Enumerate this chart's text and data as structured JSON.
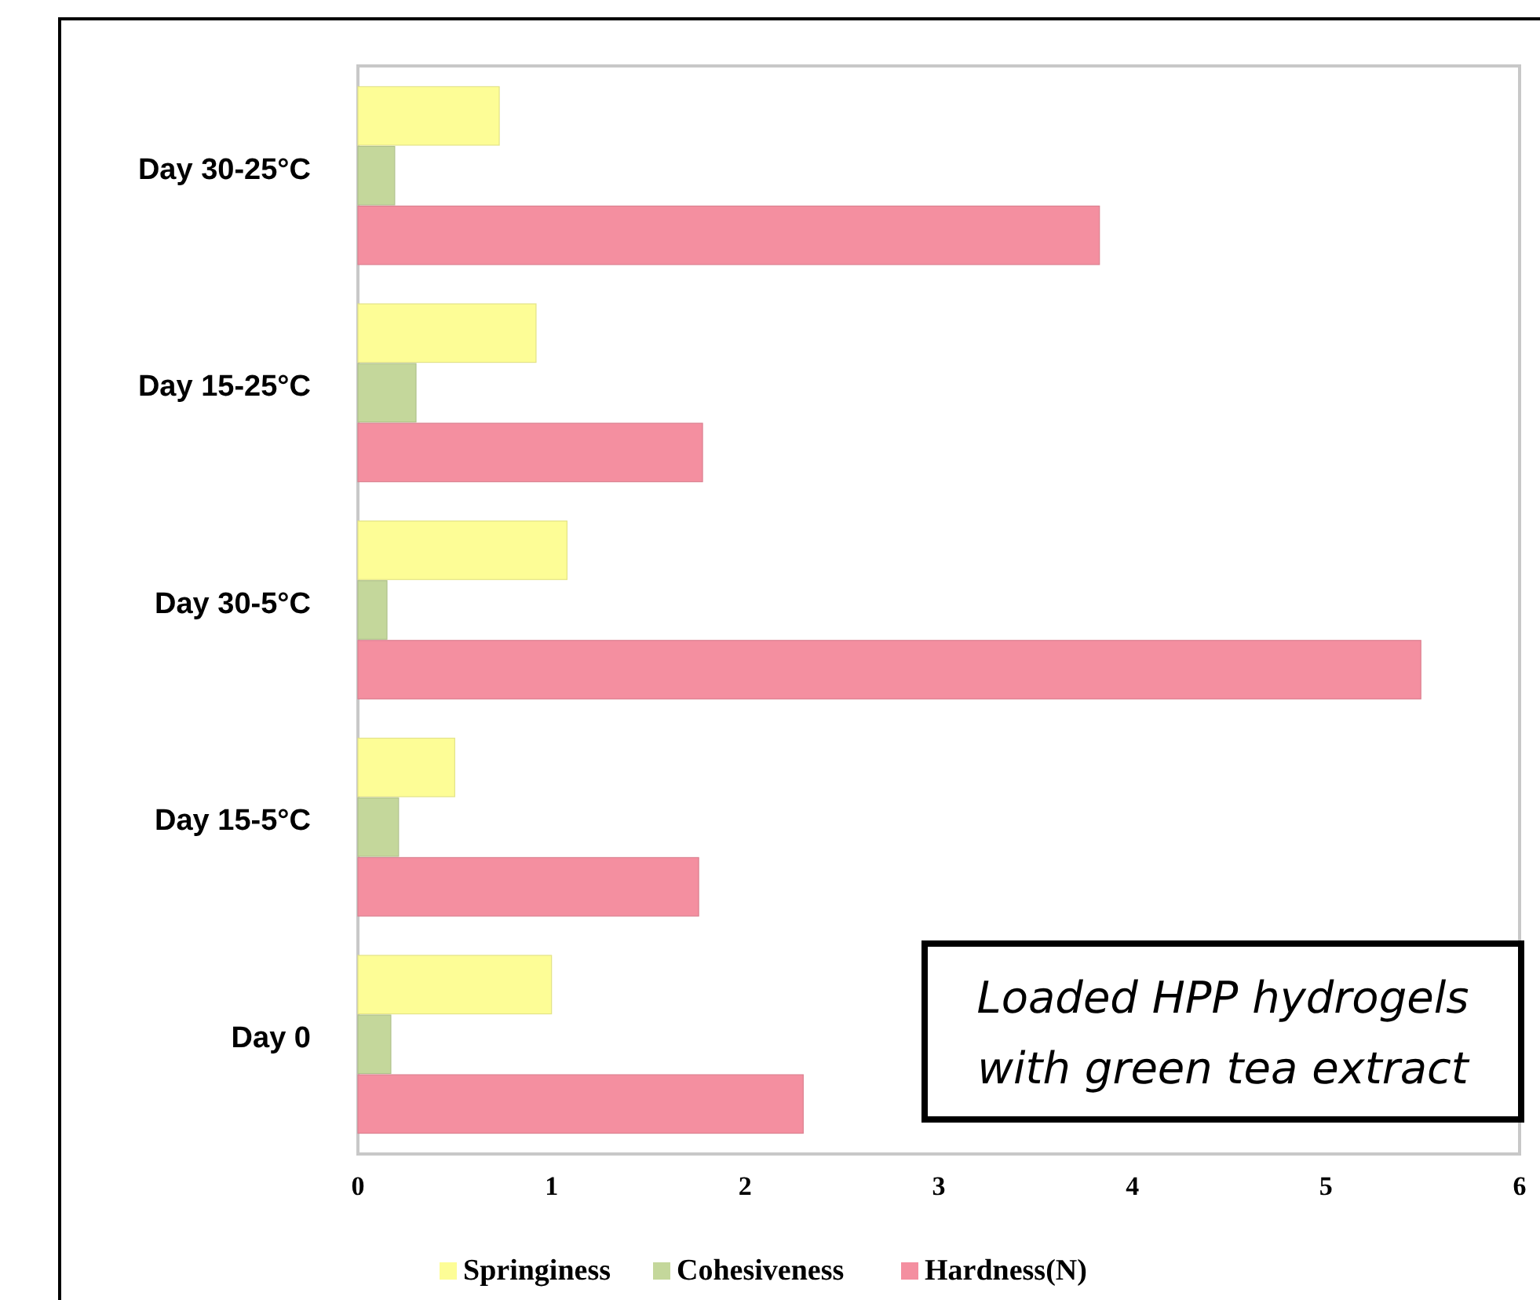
{
  "chart_data": {
    "type": "bar",
    "orientation": "horizontal",
    "categories": [
      "Day 30-25°C",
      "Day 15-25°C",
      "Day 30-5°C",
      "Day 15-5°C",
      "Day 0"
    ],
    "series": [
      {
        "name": "Springiness",
        "color": "#fdfd96",
        "values": [
          0.73,
          0.92,
          1.08,
          0.5,
          1.0
        ]
      },
      {
        "name": "Cohesiveness",
        "color": "#c4d79b",
        "values": [
          0.19,
          0.3,
          0.15,
          0.21,
          0.17
        ]
      },
      {
        "name": "Hardness(N)",
        "color": "#f48fa0",
        "values": [
          3.83,
          1.78,
          5.49,
          1.76,
          2.3
        ]
      }
    ],
    "xlim": [
      0,
      6
    ],
    "xticks": [
      0,
      1,
      2,
      3,
      4,
      5,
      6
    ],
    "grid": false,
    "legend": "bottom",
    "annotations": [
      "Loaded HPP hydrogels with green tea extract"
    ]
  }
}
